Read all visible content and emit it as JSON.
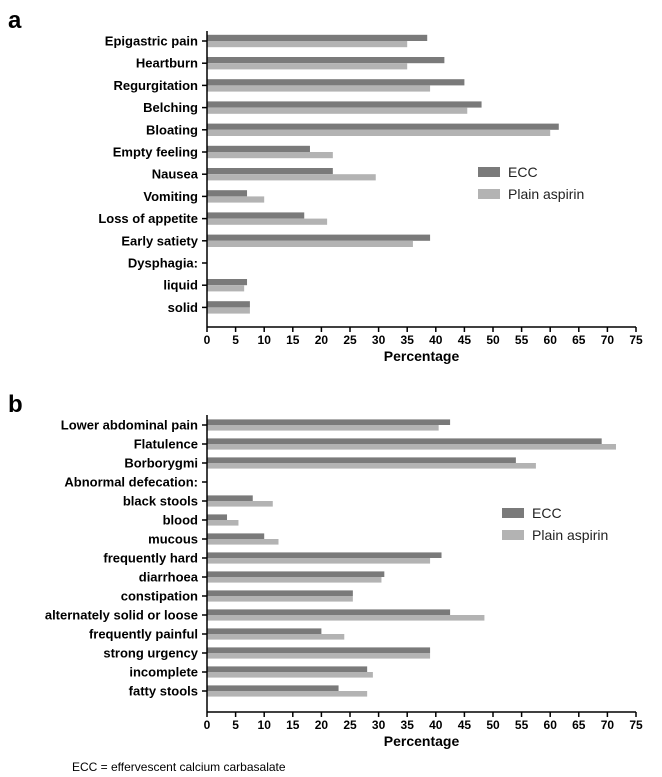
{
  "footnote": "ECC = effervescent calcium carbasalate",
  "colors": {
    "ECC": "#7a7a7a",
    "Plain aspirin": "#b3b3b3"
  },
  "chart_data": [
    {
      "panel": "a",
      "type": "bar",
      "orientation": "horizontal",
      "xlabel": "Percentage",
      "xlim": [
        0,
        75
      ],
      "xticks": [
        0,
        5,
        10,
        15,
        20,
        25,
        30,
        35,
        40,
        45,
        50,
        55,
        60,
        65,
        70,
        75
      ],
      "legend_position": "right",
      "categories": [
        "Epigastric pain",
        "Heartburn",
        "Regurgitation",
        "Belching",
        "Bloating",
        "Empty feeling",
        "Nausea",
        "Vomiting",
        "Loss of appetite",
        "Early satiety",
        "Dysphagia:",
        "liquid",
        "solid"
      ],
      "series": [
        {
          "name": "ECC",
          "values": [
            38.5,
            41.5,
            45,
            48,
            61.5,
            18,
            22,
            7,
            17,
            39,
            null,
            7,
            7.5
          ]
        },
        {
          "name": "Plain aspirin",
          "values": [
            35,
            35,
            39,
            45.5,
            60,
            22,
            29.5,
            10,
            21,
            36,
            null,
            6.5,
            7.5
          ]
        }
      ]
    },
    {
      "panel": "b",
      "type": "bar",
      "orientation": "horizontal",
      "xlabel": "Percentage",
      "xlim": [
        0,
        75
      ],
      "xticks": [
        0,
        5,
        10,
        15,
        20,
        25,
        30,
        35,
        40,
        45,
        50,
        55,
        60,
        65,
        70,
        75
      ],
      "legend_position": "right",
      "categories": [
        "Lower abdominal pain",
        "Flatulence",
        "Borborygmi",
        "Abnormal defecation:",
        "black stools",
        "blood",
        "mucous",
        "frequently hard",
        "diarrhoea",
        "constipation",
        "alternately solid or loose",
        "frequently painful",
        "strong urgency",
        "incomplete",
        "fatty stools"
      ],
      "series": [
        {
          "name": "ECC",
          "values": [
            42.5,
            69,
            54,
            0,
            8,
            3.5,
            10,
            41,
            31,
            25.5,
            42.5,
            20,
            39,
            28,
            23
          ]
        },
        {
          "name": "Plain aspirin",
          "values": [
            40.5,
            71.5,
            57.5,
            0,
            11.5,
            5.5,
            12.5,
            39,
            30.5,
            25.5,
            48.5,
            24,
            39,
            29,
            28
          ]
        }
      ]
    }
  ]
}
